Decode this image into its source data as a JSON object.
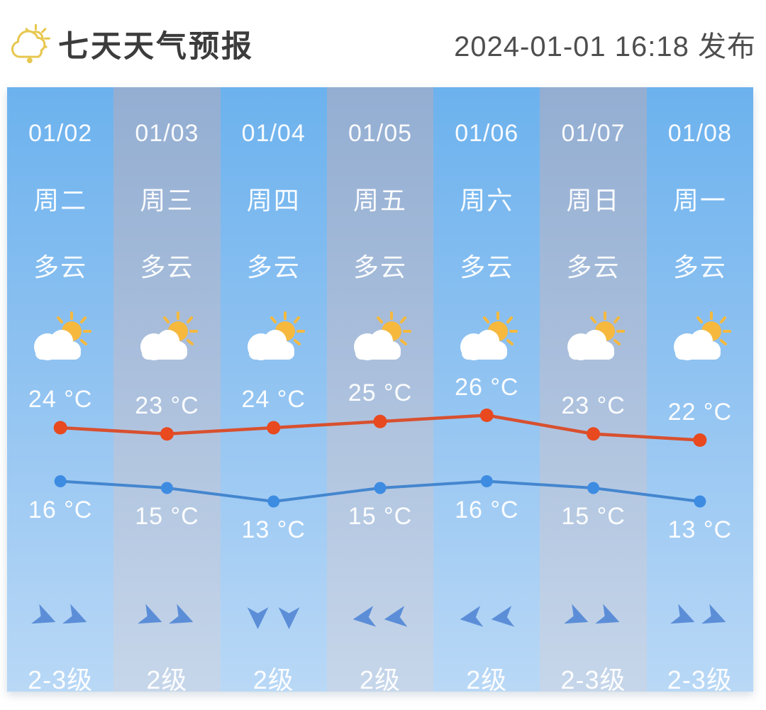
{
  "header": {
    "icon": "sun-cloud-outline-icon",
    "title": "七天天气预报",
    "published": "2024-01-01 16:18 发布"
  },
  "unit": "°C",
  "days": [
    {
      "date": "01/02",
      "weekday": "周二",
      "condition": "多云",
      "icon": "cloudy-sun-icon",
      "high": 24,
      "low": 16,
      "wind_arrow": "right",
      "wind_rotation_deg": 22,
      "wind_level": "2-3级"
    },
    {
      "date": "01/03",
      "weekday": "周三",
      "condition": "多云",
      "icon": "cloudy-sun-icon",
      "high": 23,
      "low": 15,
      "wind_arrow": "right",
      "wind_rotation_deg": 22,
      "wind_level": "2级"
    },
    {
      "date": "01/04",
      "weekday": "周四",
      "condition": "多云",
      "icon": "cloudy-sun-icon",
      "high": 24,
      "low": 13,
      "wind_arrow": "down",
      "wind_rotation_deg": 90,
      "wind_level": "2级"
    },
    {
      "date": "01/05",
      "weekday": "周五",
      "condition": "多云",
      "icon": "cloudy-sun-icon",
      "high": 25,
      "low": 15,
      "wind_arrow": "left",
      "wind_rotation_deg": 172,
      "wind_level": "2级"
    },
    {
      "date": "01/06",
      "weekday": "周六",
      "condition": "多云",
      "icon": "cloudy-sun-icon",
      "high": 26,
      "low": 16,
      "wind_arrow": "left",
      "wind_rotation_deg": 172,
      "wind_level": "2级"
    },
    {
      "date": "01/07",
      "weekday": "周日",
      "condition": "多云",
      "icon": "cloudy-sun-icon",
      "high": 23,
      "low": 15,
      "wind_arrow": "right",
      "wind_rotation_deg": 22,
      "wind_level": "2-3级"
    },
    {
      "date": "01/08",
      "weekday": "周一",
      "condition": "多云",
      "icon": "cloudy-sun-icon",
      "high": 22,
      "low": 13,
      "wind_arrow": "right",
      "wind_rotation_deg": 22,
      "wind_level": "2-3级"
    }
  ],
  "chart_data": {
    "type": "line",
    "categories": [
      "01/02",
      "01/03",
      "01/04",
      "01/05",
      "01/06",
      "01/07",
      "01/08"
    ],
    "series": [
      {
        "name": "high-temperature",
        "values": [
          24,
          23,
          24,
          25,
          26,
          23,
          22
        ]
      },
      {
        "name": "low-temperature",
        "values": [
          16,
          15,
          13,
          15,
          16,
          15,
          13
        ]
      }
    ],
    "unit": "°C",
    "grid": false,
    "legend": "none"
  },
  "colors": {
    "column_blue_top": "#6cb2ee",
    "column_blue_bottom": "#b9d8f6",
    "column_gray_top": "#93aed2",
    "column_gray_bottom": "#c6d6ea",
    "high_line": "#d8502f",
    "high_dot": "#e8491f",
    "low_line": "#4486cf",
    "low_dot": "#3d8ce2",
    "wind_arrow": "#5c8ed8",
    "header_accent": "#e7c74f",
    "text": "#ffffff"
  }
}
